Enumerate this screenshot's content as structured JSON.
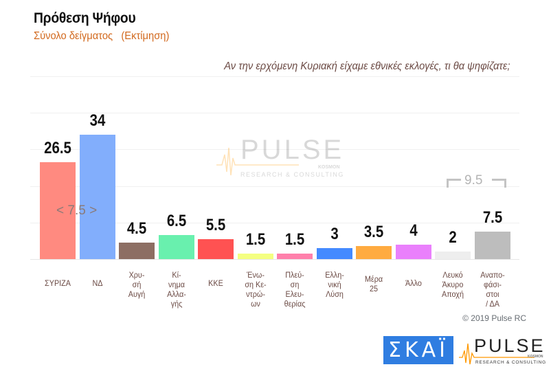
{
  "header": {
    "title": "Πρόθεση Ψήφου",
    "subtitle": "Σύνολο δείγματος   (Εκτίμηση)",
    "question": "Αν την ερχόμενη Κυριακή είχαμε εθνικές εκλογές, τι θα ψηφίζατε;"
  },
  "annotations": {
    "gap_syriza_nd": "< 7.5 >",
    "bracket_total": "9.5",
    "copyright": "© 2019 Pulse RC"
  },
  "watermark": {
    "brand": "PULSE",
    "sub": "RESEARCH & CONSULTING",
    "tag": "KOSMON"
  },
  "logos": {
    "skai": "ΣΚΑΪ",
    "pulse": "PULSE",
    "pulse_sub": "RESEARCH & CONSULTING",
    "pulse_tag": "KOSMON"
  },
  "chart_data": {
    "type": "bar",
    "title": "Πρόθεση Ψήφου",
    "subtitle": "Σύνολο δείγματος (Εκτίμηση)",
    "question": "Αν την ερχόμενη Κυριακή είχαμε εθνικές εκλογές, τι θα ψηφίζατε;",
    "xlabel": "",
    "ylabel": "",
    "ylim": [
      0,
      50
    ],
    "grid": true,
    "legend": "none",
    "categories": [
      "ΣΥΡΙΖΑ",
      "ΝΔ",
      "Χρυ-\nσή\nΑυγή",
      "Κί-\nνημα\nΑλλα-\nγής",
      "ΚΚΕ",
      "Ένω-\nση Κε-\nντρώ-\nων",
      "Πλεύ-\nση\nΕλευ-\nθερίας",
      "Ελλη-\nνική\nΛύση",
      "Μέρα\n25",
      "Άλλο",
      "Λευκό\nΆκυρο\nΑποχή",
      "Αναπο-\nφάσι-\nστοι\n/ ΔΑ"
    ],
    "values": [
      26.5,
      34,
      4.5,
      6.5,
      5.5,
      1.5,
      1.5,
      3,
      3.5,
      4,
      2,
      7.5
    ],
    "value_labels": [
      "26.5",
      "34",
      "4.5",
      "6.5",
      "5.5",
      "1.5",
      "1.5",
      "3",
      "3.5",
      "4",
      "2",
      "7.5"
    ],
    "colors": [
      "#ff8a80",
      "#82aefc",
      "#8d6e63",
      "#69f0ae",
      "#ff5252",
      "#f4ff81",
      "#ff80ab",
      "#448aff",
      "#ffab40",
      "#ea80fc",
      "#eeeeee",
      "#bdbdbd"
    ],
    "annotations": [
      {
        "text": "< 7.5 >",
        "between": [
          "ΣΥΡΙΖΑ",
          "ΝΔ"
        ]
      },
      {
        "text": "9.5",
        "spans": [
          "Λευκό Άκυρο Αποχή",
          "Αναποφάσιστοι / ΔΑ"
        ]
      }
    ],
    "source": "© 2019 Pulse RC"
  }
}
